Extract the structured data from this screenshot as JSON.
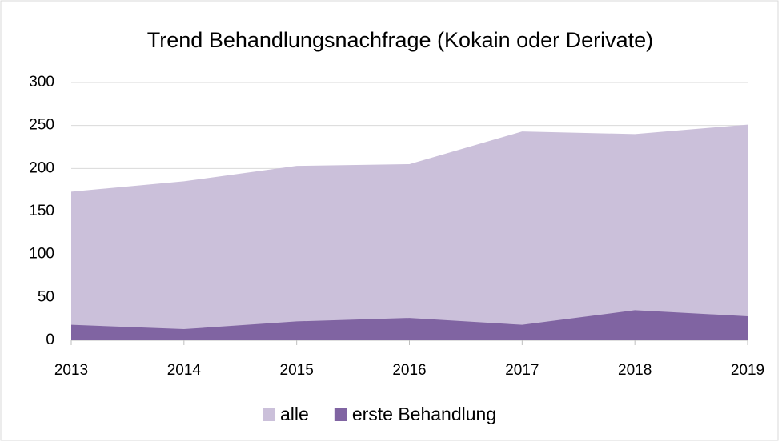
{
  "chart_data": {
    "type": "area",
    "title": "Trend Behandlungsnachfrage  (Kokain oder Derivate)",
    "categories": [
      "2013",
      "2014",
      "2015",
      "2016",
      "2017",
      "2018",
      "2019"
    ],
    "series": [
      {
        "name": "alle",
        "color": "#cbc0da",
        "values": [
          173,
          185,
          203,
          205,
          243,
          240,
          251
        ]
      },
      {
        "name": "erste Behandlung",
        "color": "#8064a2",
        "values": [
          18,
          13,
          22,
          26,
          18,
          35,
          28
        ]
      }
    ],
    "ylim": [
      0,
      300
    ],
    "yticks": [
      0,
      50,
      100,
      150,
      200,
      250,
      300
    ],
    "grid": true,
    "legend": "bottom"
  }
}
